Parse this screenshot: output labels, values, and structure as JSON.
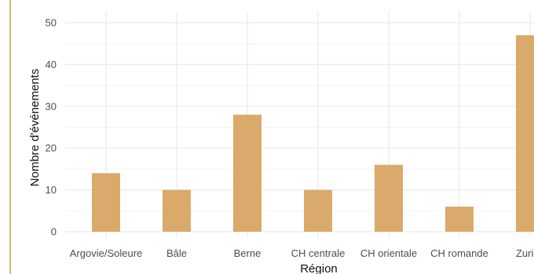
{
  "chart_data": {
    "type": "bar",
    "categories": [
      "Argovie/Soleure",
      "Bâle",
      "Berne",
      "CH centrale",
      "CH orientale",
      "CH romande",
      "Zurich"
    ],
    "values": [
      14,
      10,
      28,
      10,
      16,
      6,
      47
    ],
    "xlabel": "Région",
    "ylabel": "Nombre d'événements",
    "ylim": [
      0,
      50
    ],
    "yticks": [
      0,
      10,
      20,
      30,
      40,
      50
    ],
    "grid": true,
    "bar_color": "#d9aa6b",
    "grid_color": "#ebebeb"
  }
}
